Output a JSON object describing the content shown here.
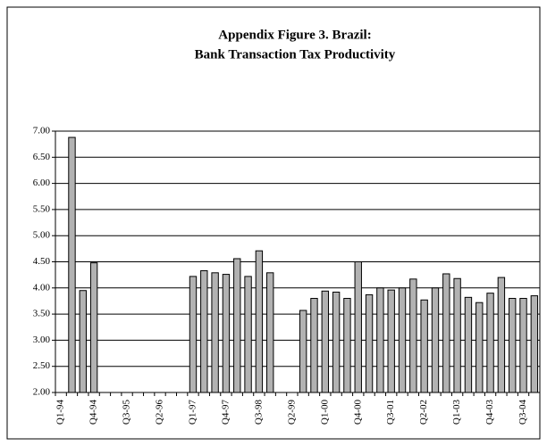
{
  "chart_data": {
    "type": "bar",
    "title": "Appendix Figure 3. Brazil:",
    "subtitle": "Bank Transaction Tax Productivity",
    "categories": [
      "Q1-94",
      null,
      null,
      "Q4-94",
      null,
      null,
      "Q3-95",
      null,
      null,
      "Q2-96",
      null,
      null,
      "Q1-97",
      null,
      null,
      "Q4-97",
      null,
      null,
      "Q3-98",
      null,
      null,
      "Q2-99",
      null,
      null,
      "Q1-00",
      null,
      null,
      "Q4-00",
      null,
      null,
      "Q3-01",
      null,
      null,
      "Q2-02",
      null,
      null,
      "Q1-03",
      null,
      null,
      "Q4-03",
      null,
      null,
      "Q3-04",
      null
    ],
    "values": [
      null,
      6.88,
      3.95,
      4.48,
      null,
      null,
      null,
      null,
      null,
      null,
      null,
      null,
      4.22,
      4.33,
      4.29,
      4.26,
      4.56,
      4.22,
      4.71,
      4.29,
      null,
      null,
      3.57,
      3.8,
      3.94,
      3.92,
      3.8,
      4.5,
      3.87,
      4.0,
      3.96,
      4.0,
      4.17,
      3.77,
      4.0,
      4.27,
      4.18,
      3.82,
      3.72,
      3.9,
      4.2,
      3.8,
      3.8,
      3.85
    ],
    "color": "#b2b2b2",
    "ylim": [
      2,
      7
    ],
    "yticks": [
      {
        "value": 2,
        "label": "2.00"
      },
      {
        "value": 2.5,
        "label": "2.50"
      },
      {
        "value": 3,
        "label": "3.00"
      },
      {
        "value": 3.5,
        "label": "3.50"
      },
      {
        "value": 4,
        "label": "4.00"
      },
      {
        "value": 4.5,
        "label": "4.50"
      },
      {
        "value": 5,
        "label": "5.00"
      },
      {
        "value": 5.5,
        "label": "5.50"
      },
      {
        "value": 6,
        "label": "6.00"
      },
      {
        "value": 6.5,
        "label": "6.50"
      },
      {
        "value": 7,
        "label": "7.00"
      }
    ],
    "grid": true
  }
}
